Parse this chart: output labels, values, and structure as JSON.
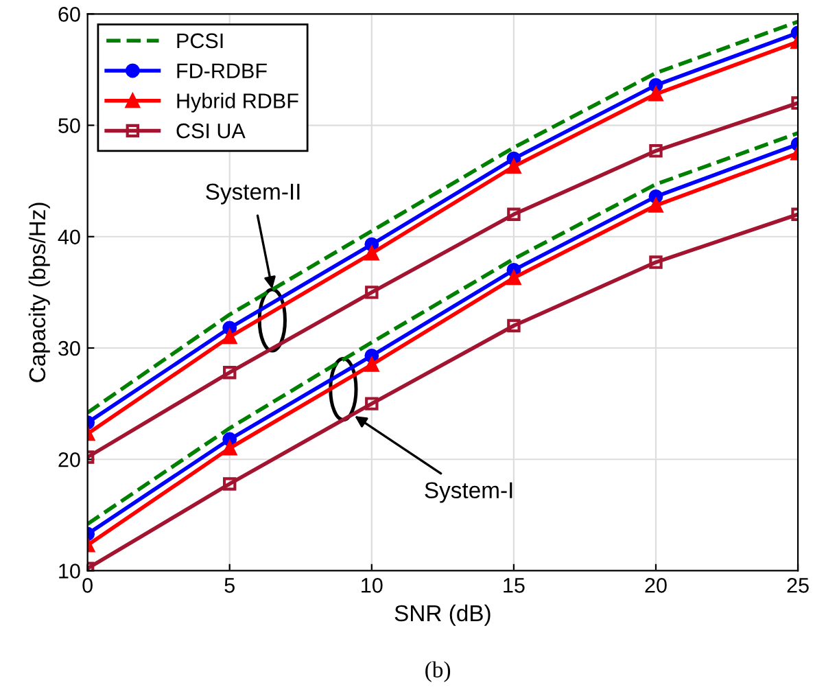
{
  "chart_data": {
    "type": "line",
    "xlabel": "SNR (dB)",
    "ylabel": "Capacity (bps/Hz)",
    "x": [
      0,
      5,
      10,
      15,
      20,
      25
    ],
    "series": [
      {
        "name": "PCSI",
        "color": "#008000",
        "line_style": "dashed",
        "marker": "none",
        "values": [
          24.2,
          33.0,
          40.5,
          48.0,
          54.7,
          59.3
        ]
      },
      {
        "name": "FD-RDBF",
        "color": "#0000ff",
        "line_style": "solid",
        "marker": "circle",
        "values": [
          23.3,
          31.8,
          39.3,
          47.0,
          53.6,
          58.3
        ]
      },
      {
        "name": "Hybrid RDBF",
        "color": "#ff0000",
        "line_style": "solid",
        "marker": "triangle",
        "values": [
          22.3,
          31.0,
          38.5,
          46.3,
          52.8,
          57.5
        ]
      },
      {
        "name": "CSI UA",
        "color": "#a2142f",
        "line_style": "solid",
        "marker": "square",
        "values": [
          20.2,
          27.8,
          35.0,
          42.0,
          47.7,
          52.0
        ]
      },
      {
        "color": "#008000",
        "line_style": "dashed",
        "marker": "none",
        "values": [
          14.2,
          22.8,
          30.5,
          38.0,
          44.7,
          49.3
        ]
      },
      {
        "color": "#0000ff",
        "line_style": "solid",
        "marker": "circle",
        "values": [
          13.3,
          21.8,
          29.3,
          37.0,
          43.6,
          48.3
        ]
      },
      {
        "color": "#ff0000",
        "line_style": "solid",
        "marker": "triangle",
        "values": [
          12.3,
          21.0,
          28.5,
          36.3,
          42.8,
          47.5
        ]
      },
      {
        "color": "#a2142f",
        "line_style": "solid",
        "marker": "square",
        "values": [
          10.2,
          17.8,
          25.0,
          32.0,
          37.7,
          42.0
        ]
      }
    ],
    "xlim": [
      0,
      25
    ],
    "ylim": [
      10,
      60
    ],
    "xticks": [
      0,
      5,
      10,
      15,
      20,
      25
    ],
    "yticks": [
      10,
      20,
      30,
      40,
      50,
      60
    ],
    "grid": true,
    "legend": "top left",
    "annotations": [
      {
        "text": "System-II",
        "x": 6.5,
        "y": 35.3
      },
      {
        "text": "System-I",
        "x": 9.4,
        "y": 23.9
      },
      "(b)"
    ]
  }
}
